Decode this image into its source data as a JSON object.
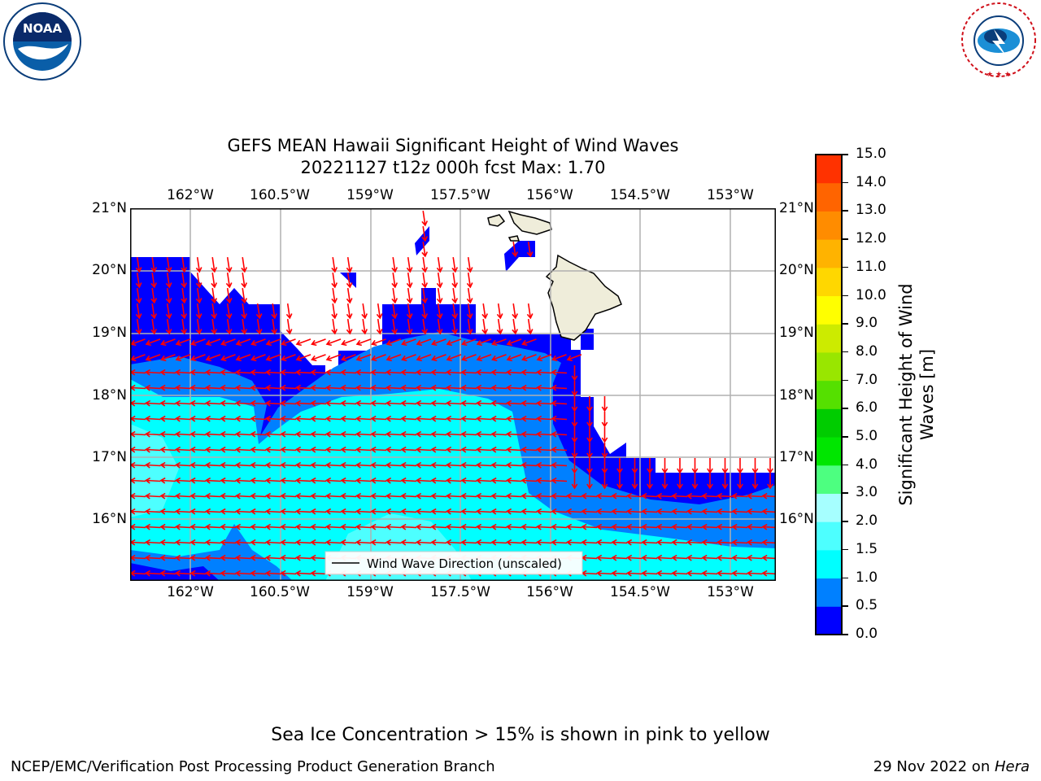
{
  "header": {
    "title_line1": "GEFS MEAN Hawaii Significant Height of Wind Waves",
    "title_line2": "20221127 t12z 000h fcst   Max: 1.70"
  },
  "logos": {
    "left": {
      "text": "NOAA",
      "icon": "noaa-logo-icon",
      "color": "#0a5ea8"
    },
    "right": {
      "text": "NATIONAL WEATHER SERVICE",
      "icon": "nws-logo-icon",
      "color": "#d0101a"
    }
  },
  "map": {
    "lon_labels": [
      "162°W",
      "160.5°W",
      "159°W",
      "157.5°W",
      "156°W",
      "154.5°W",
      "153°W"
    ],
    "lat_labels": [
      "21°N",
      "20°N",
      "19°N",
      "18°N",
      "17°N",
      "16°N"
    ],
    "legend_label": "Wind Wave Direction (unscaled)",
    "colors": {
      "land": "#efedda",
      "arrow": "#ff0000",
      "grid": "#b0b0b0"
    }
  },
  "colorbar": {
    "label": "Significant Height of Wind Waves [m]",
    "label_line1": "Significant Height of Wind",
    "label_line2": "Waves [m]",
    "ticks": [
      "15.0",
      "14.0",
      "13.0",
      "12.0",
      "11.0",
      "10.0",
      "9.0",
      "8.0",
      "7.0",
      "6.0",
      "5.0",
      "4.0",
      "3.0",
      "2.0",
      "1.5",
      "1.0",
      "0.5",
      "0.0"
    ],
    "colors_bottom_to_top": [
      "#0000ff",
      "#0080ff",
      "#00ffff",
      "#4dffff",
      "#a6ffff",
      "#4dff80",
      "#00e600",
      "#00cc00",
      "#55e000",
      "#99e600",
      "#cceb00",
      "#ffff00",
      "#ffd700",
      "#ffb300",
      "#ff8c00",
      "#ff6400",
      "#ff3200",
      "#ff0000"
    ]
  },
  "caption": "Sea Ice Concentration > 15% is shown in pink to yellow",
  "footer": {
    "left": "NCEP/EMC/Verification Post Processing Product Generation Branch",
    "date": "29 Nov 2022 on ",
    "machine": "Hera"
  }
}
